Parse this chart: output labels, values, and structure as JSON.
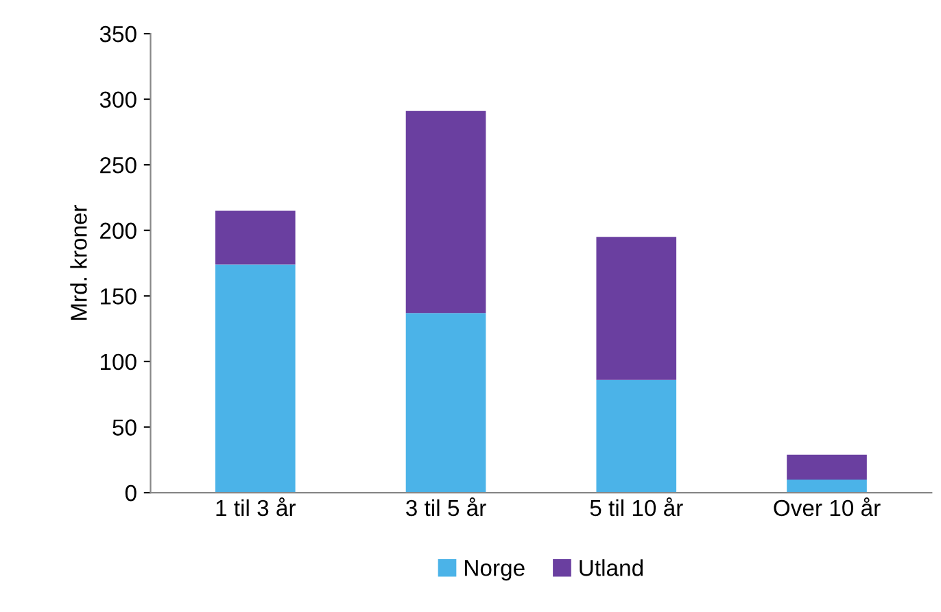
{
  "chart_data": {
    "type": "bar",
    "stacked": true,
    "ylabel": "Mrd. kroner",
    "categories": [
      "1 til 3 år",
      "3 til 5 år",
      "5 til 10 år",
      "Over 10 år"
    ],
    "series": [
      {
        "name": "Norge",
        "color": "#4bb3e8",
        "values": [
          174,
          137,
          86,
          10
        ]
      },
      {
        "name": "Utland",
        "color": "#6a3fa0",
        "values": [
          41,
          154,
          109,
          19
        ]
      }
    ],
    "ylim": [
      0,
      350
    ],
    "yticks": [
      0,
      50,
      100,
      150,
      200,
      250,
      300,
      350
    ],
    "grid": false,
    "legend": "bottom"
  }
}
